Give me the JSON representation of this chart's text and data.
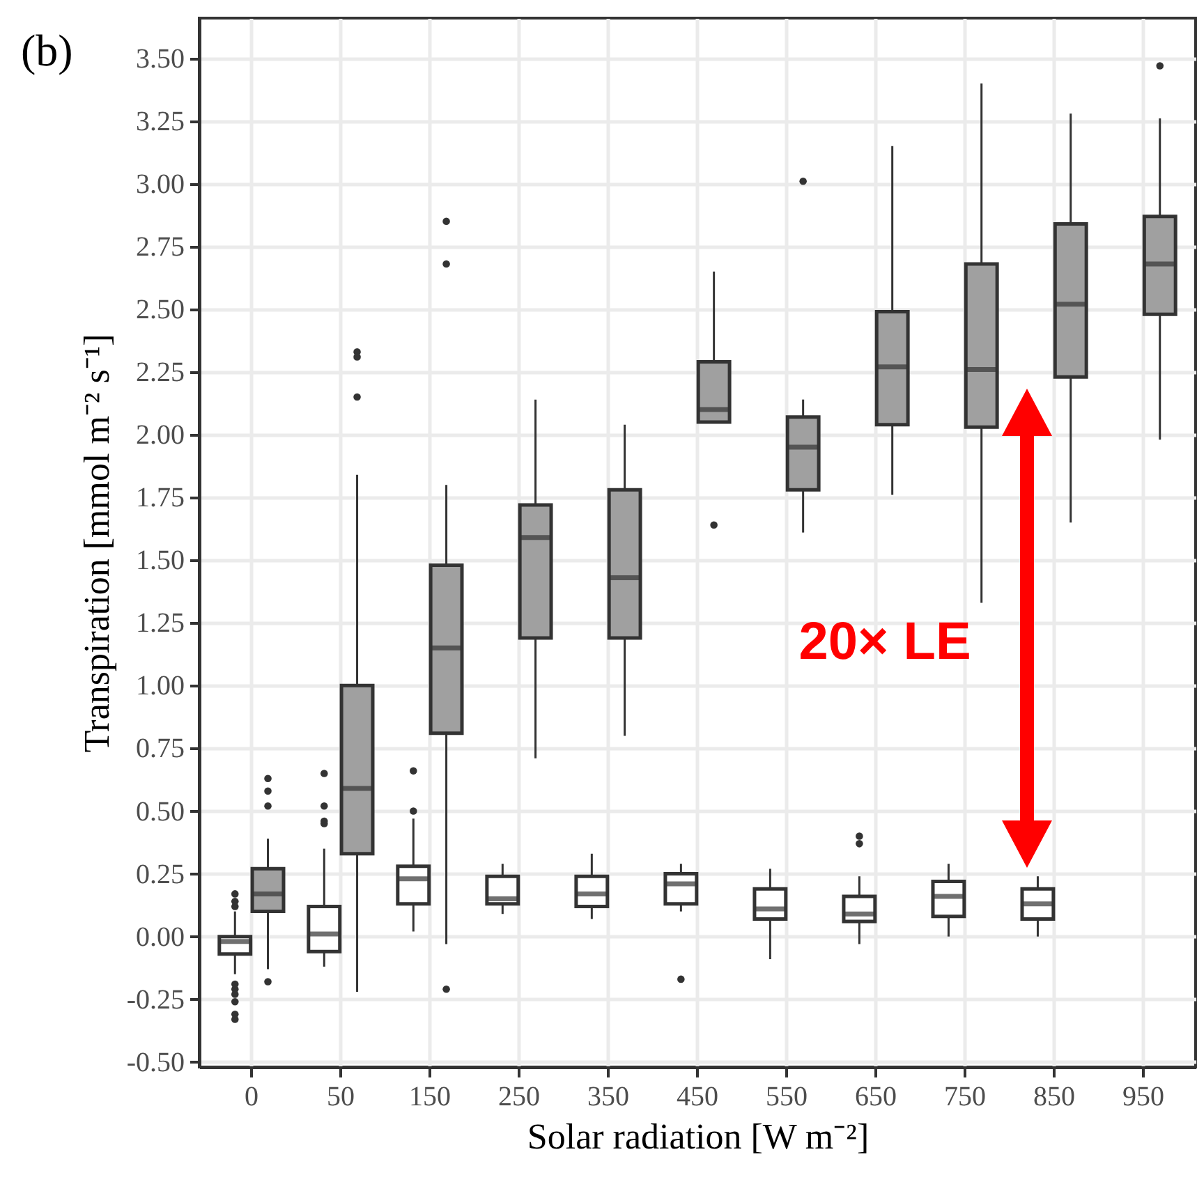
{
  "chart_data": {
    "type": "box",
    "title": "(b)",
    "xlabel": "Solar radiation [W m⁻²]",
    "ylabel": "Transpiration [mmol m⁻² s⁻¹]",
    "categories": [
      "0",
      "50",
      "150",
      "250",
      "350",
      "450",
      "550",
      "650",
      "750",
      "850",
      "950"
    ],
    "ylim": [
      -0.52,
      3.66
    ],
    "yticks": [
      {
        "value": -0.5,
        "label": "-0.50"
      },
      {
        "value": -0.25,
        "label": "-0.25"
      },
      {
        "value": 0,
        "label": "0.00"
      },
      {
        "value": 0.25,
        "label": "0.25"
      },
      {
        "value": 0.5,
        "label": "0.50"
      },
      {
        "value": 0.75,
        "label": "0.75"
      },
      {
        "value": 1,
        "label": "1.00"
      },
      {
        "value": 1.25,
        "label": "1.25"
      },
      {
        "value": 1.5,
        "label": "1.50"
      },
      {
        "value": 1.75,
        "label": "1.75"
      },
      {
        "value": 2,
        "label": "2.00"
      },
      {
        "value": 2.25,
        "label": "2.25"
      },
      {
        "value": 2.5,
        "label": "2.50"
      },
      {
        "value": 2.75,
        "label": "2.75"
      },
      {
        "value": 3,
        "label": "3.00"
      },
      {
        "value": 3.25,
        "label": "3.25"
      },
      {
        "value": 3.5,
        "label": "3.50"
      }
    ],
    "grid": true,
    "annotations": [
      "20× LE"
    ],
    "series": [
      {
        "color": "#ffffff",
        "boxes": [
          {
            "low": -0.15,
            "q1": -0.07,
            "median": -0.02,
            "q3": 0.0,
            "high": 0.1,
            "outliers": [
              0.17,
              0.14,
              0.12,
              -0.19,
              -0.21,
              -0.23,
              -0.26,
              -0.31,
              -0.33
            ]
          },
          {
            "low": -0.12,
            "q1": -0.06,
            "median": 0.01,
            "q3": 0.12,
            "high": 0.35,
            "outliers": [
              0.65,
              0.52,
              0.46,
              0.45
            ]
          },
          {
            "low": 0.02,
            "q1": 0.13,
            "median": 0.23,
            "q3": 0.28,
            "high": 0.47,
            "outliers": [
              0.66,
              0.5
            ]
          },
          {
            "low": 0.09,
            "q1": 0.13,
            "median": 0.15,
            "q3": 0.24,
            "high": 0.29
          },
          {
            "low": 0.07,
            "q1": 0.12,
            "median": 0.17,
            "q3": 0.24,
            "high": 0.33
          },
          {
            "low": 0.1,
            "q1": 0.13,
            "median": 0.21,
            "q3": 0.25,
            "high": 0.29,
            "outliers": [
              -0.17
            ]
          },
          {
            "low": -0.09,
            "q1": 0.07,
            "median": 0.11,
            "q3": 0.19,
            "high": 0.27
          },
          {
            "low": -0.03,
            "q1": 0.06,
            "median": 0.09,
            "q3": 0.16,
            "high": 0.24,
            "outliers": [
              0.4,
              0.37
            ]
          },
          {
            "low": 0.0,
            "q1": 0.08,
            "median": 0.16,
            "q3": 0.22,
            "high": 0.29
          },
          {
            "low": 0.0,
            "q1": 0.07,
            "median": 0.13,
            "q3": 0.19,
            "high": 0.24
          },
          null
        ]
      },
      {
        "color": "#a0a0a0",
        "boxes": [
          {
            "low": -0.13,
            "q1": 0.1,
            "median": 0.17,
            "q3": 0.27,
            "high": 0.39,
            "outliers": [
              0.63,
              0.58,
              0.52,
              -0.18
            ]
          },
          {
            "low": -0.22,
            "q1": 0.33,
            "median": 0.59,
            "q3": 1.0,
            "high": 1.84,
            "outliers": [
              2.33,
              2.31,
              2.15
            ]
          },
          {
            "low": -0.03,
            "q1": 0.81,
            "median": 1.15,
            "q3": 1.48,
            "high": 1.8,
            "outliers": [
              2.85,
              2.68,
              -0.21
            ]
          },
          {
            "low": 0.71,
            "q1": 1.19,
            "median": 1.59,
            "q3": 1.72,
            "high": 2.14
          },
          {
            "low": 0.8,
            "q1": 1.19,
            "median": 1.43,
            "q3": 1.78,
            "high": 2.04
          },
          {
            "low": 2.05,
            "q1": 2.05,
            "median": 2.1,
            "q3": 2.29,
            "high": 2.65,
            "outliers": [
              1.64
            ]
          },
          {
            "low": 1.61,
            "q1": 1.78,
            "median": 1.95,
            "q3": 2.07,
            "high": 2.14,
            "outliers": [
              3.01
            ]
          },
          {
            "low": 1.76,
            "q1": 2.04,
            "median": 2.27,
            "q3": 2.49,
            "high": 3.15
          },
          {
            "low": 1.33,
            "q1": 2.03,
            "median": 2.26,
            "q3": 2.68,
            "high": 3.4
          },
          {
            "low": 1.65,
            "q1": 2.23,
            "median": 2.52,
            "q3": 2.84,
            "high": 3.28
          },
          {
            "low": 1.98,
            "q1": 2.48,
            "median": 2.68,
            "q3": 2.87,
            "high": 3.26,
            "outliers": [
              3.47
            ]
          }
        ]
      }
    ]
  }
}
